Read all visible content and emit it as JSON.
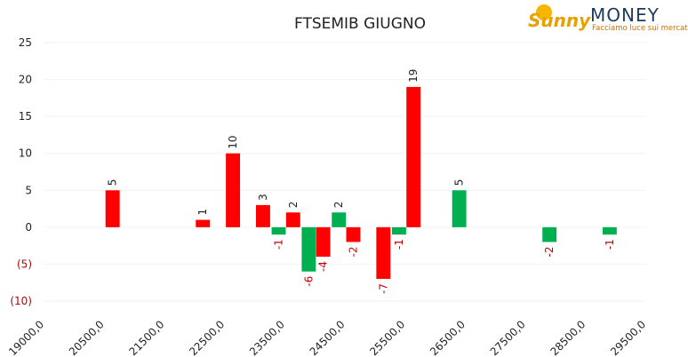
{
  "chart_data": {
    "type": "bar",
    "title": "FTSEMIB GIUGNO",
    "categories": [
      "19000,0",
      null,
      "20500,0",
      null,
      "21500,0",
      null,
      "22500,0",
      null,
      "23500,0",
      null,
      "24500,0",
      null,
      "25500,0",
      null,
      "26500,0",
      null,
      "27500,0",
      null,
      "28500,0",
      null,
      "29500,0"
    ],
    "series": [
      {
        "color": "#ff0000",
        "values": [
          null,
          null,
          5,
          null,
          null,
          1,
          10,
          3,
          2,
          -4,
          -2,
          -7,
          19,
          null,
          null,
          null,
          null,
          null,
          null,
          null,
          null
        ]
      },
      {
        "color": "#00b050",
        "values": [
          null,
          null,
          null,
          null,
          null,
          null,
          null,
          -1,
          -6,
          2,
          null,
          -1,
          null,
          5,
          null,
          null,
          -2,
          null,
          -1,
          null,
          null
        ]
      }
    ],
    "ylim": [
      -10,
      25
    ],
    "yticks": [
      {
        "value": -10,
        "label": "(10)"
      },
      {
        "value": -5,
        "label": "(5)"
      },
      0,
      5,
      10,
      15,
      20,
      25
    ],
    "negative_color": "#c00000",
    "grid": true
  },
  "logo": {
    "brand": "Sunny",
    "name": "MONEY",
    "tagline": "Facciamo luce sui mercati"
  }
}
